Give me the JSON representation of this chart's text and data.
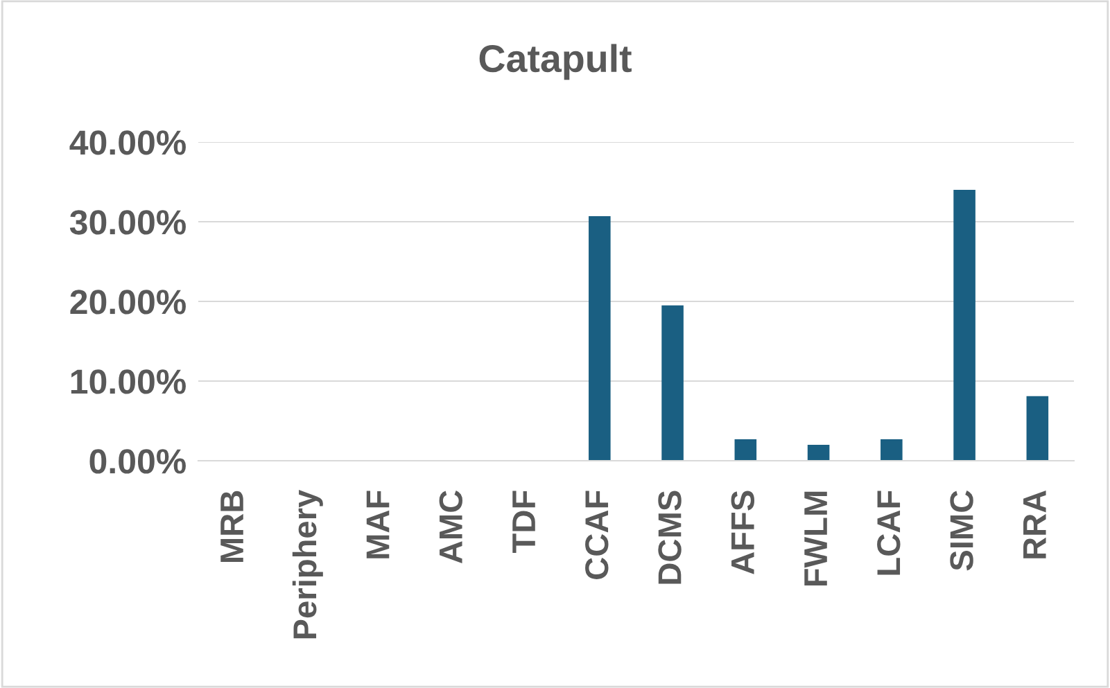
{
  "chart_data": {
    "type": "bar",
    "title": "Catapult",
    "categories": [
      "MRB",
      "Periphery",
      "MAF",
      "AMC",
      "TDF",
      "CCAF",
      "DCMS",
      "AFFS",
      "FWLM",
      "LCAF",
      "SIMC",
      "RRA"
    ],
    "values": [
      0,
      0,
      0,
      0,
      0,
      30.7,
      19.5,
      2.7,
      2.0,
      2.7,
      34.0,
      8.1
    ],
    "color": "#1a5f82",
    "ylim": [
      0,
      40
    ],
    "yticks": [
      {
        "value": 0,
        "label": "0.00%"
      },
      {
        "value": 10,
        "label": "10.00%"
      },
      {
        "value": 20,
        "label": "20.00%"
      },
      {
        "value": 30,
        "label": "30.00%"
      },
      {
        "value": 40,
        "label": "40.00%"
      }
    ],
    "grid": "y",
    "legend": false
  }
}
